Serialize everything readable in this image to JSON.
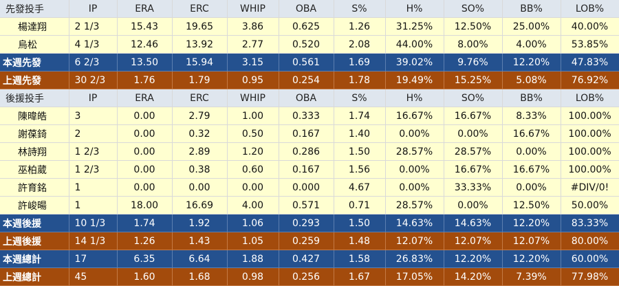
{
  "columns": [
    "IP",
    "ERA",
    "ERC",
    "WHIP",
    "OBA",
    "S%",
    "H%",
    "SO%",
    "BB%",
    "LOB%"
  ],
  "sections": [
    {
      "header": "先發投手",
      "rows": [
        {
          "name": "楊達翔",
          "values": [
            "2 1/3",
            "15.43",
            "19.65",
            "3.86",
            "0.625",
            "1.26",
            "31.25%",
            "12.50%",
            "25.00%",
            "40.00%"
          ]
        },
        {
          "name": "烏松",
          "values": [
            "4 1/3",
            "12.46",
            "13.92",
            "2.77",
            "0.520",
            "2.08",
            "44.00%",
            "8.00%",
            "4.00%",
            "53.85%"
          ]
        }
      ],
      "totals": [
        {
          "name": "本週先發",
          "style": "blue",
          "values": [
            "6 2/3",
            "13.50",
            "15.94",
            "3.15",
            "0.561",
            "1.69",
            "39.02%",
            "9.76%",
            "12.20%",
            "47.83%"
          ]
        },
        {
          "name": "上週先發",
          "style": "brown",
          "values": [
            "30 2/3",
            "1.76",
            "1.79",
            "0.95",
            "0.254",
            "1.78",
            "19.49%",
            "15.25%",
            "5.08%",
            "76.92%"
          ]
        }
      ]
    },
    {
      "header": "後援投手",
      "rows": [
        {
          "name": "陳暐皓",
          "values": [
            "3",
            "0.00",
            "2.79",
            "1.00",
            "0.333",
            "1.74",
            "16.67%",
            "16.67%",
            "8.33%",
            "100.00%"
          ]
        },
        {
          "name": "謝葆錡",
          "values": [
            "2",
            "0.00",
            "0.32",
            "0.50",
            "0.167",
            "1.40",
            "0.00%",
            "0.00%",
            "16.67%",
            "100.00%"
          ]
        },
        {
          "name": "林詩翔",
          "values": [
            "1 2/3",
            "0.00",
            "2.89",
            "1.20",
            "0.286",
            "1.50",
            "28.57%",
            "28.57%",
            "0.00%",
            "100.00%"
          ]
        },
        {
          "name": "巫柏葳",
          "values": [
            "1 2/3",
            "0.00",
            "0.38",
            "0.60",
            "0.167",
            "1.56",
            "0.00%",
            "16.67%",
            "16.67%",
            "100.00%"
          ]
        },
        {
          "name": "許育銘",
          "values": [
            "1",
            "0.00",
            "0.00",
            "0.00",
            "0.000",
            "4.67",
            "0.00%",
            "33.33%",
            "0.00%",
            "#DIV/0!"
          ]
        },
        {
          "name": "許峻暘",
          "values": [
            "1",
            "18.00",
            "16.69",
            "4.00",
            "0.571",
            "0.71",
            "28.57%",
            "0.00%",
            "12.50%",
            "50.00%"
          ]
        }
      ],
      "totals": [
        {
          "name": "本週後援",
          "style": "blue",
          "values": [
            "10 1/3",
            "1.74",
            "1.92",
            "1.06",
            "0.293",
            "1.50",
            "14.63%",
            "14.63%",
            "12.20%",
            "83.33%"
          ]
        },
        {
          "name": "上週後援",
          "style": "brown",
          "values": [
            "14 1/3",
            "1.26",
            "1.43",
            "1.05",
            "0.259",
            "1.48",
            "12.07%",
            "12.07%",
            "12.07%",
            "80.00%"
          ]
        }
      ]
    }
  ],
  "grand_totals": [
    {
      "name": "本週總計",
      "style": "blue",
      "values": [
        "17",
        "6.35",
        "6.64",
        "1.88",
        "0.427",
        "1.58",
        "26.83%",
        "12.20%",
        "12.20%",
        "60.00%"
      ]
    },
    {
      "name": "上週總計",
      "style": "brown",
      "values": [
        "45",
        "1.60",
        "1.68",
        "0.98",
        "0.256",
        "1.67",
        "17.05%",
        "14.20%",
        "7.39%",
        "77.98%"
      ]
    }
  ],
  "colors": {
    "header_bg": "#dfe6ee",
    "player_bg": "#ffffd0",
    "this_week_bg": "#24518f",
    "last_week_bg": "#a34b0c"
  }
}
